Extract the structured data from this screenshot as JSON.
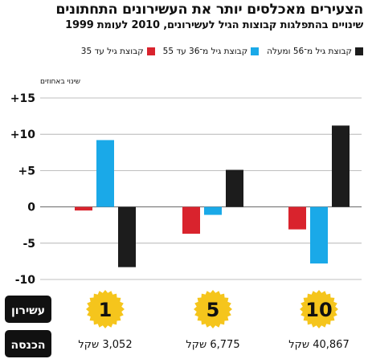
{
  "title": "הצעירים מאכלסים יותר את העשירונים התחתונים",
  "subtitle": "שינויים בהתפלגות קבוצות הגיל לעשירונים, 2010 לעומת 1999",
  "chart_data": {
    "type": "bar",
    "title": "הצעירים מאכלסים יותר את העשירונים התחתונים",
    "subtitle": "שינויים בהתפלגות קבוצות הגיל לעשירונים, 2010 לעומת 1999",
    "ylabel": "שינוי באחוזים",
    "ylim": [
      -10,
      15
    ],
    "yticks": [
      15,
      10,
      5,
      0,
      -5,
      -10
    ],
    "ytick_labels": [
      "+15",
      "+10",
      "+5",
      "0",
      "-5",
      "-10"
    ],
    "grid": true,
    "legend_position": "top",
    "categories": [
      "1",
      "5",
      "10"
    ],
    "category_axis_label": "עשירון",
    "income_label": "הכנסה",
    "incomes": [
      "3,052 שקל",
      "6,775 שקל",
      "40,867 שקל"
    ],
    "series": [
      {
        "name": "קבוצת גיל עד 35",
        "color": "#d9232d",
        "values": [
          -0.5,
          -3.7,
          -3.1
        ]
      },
      {
        "name": "קבוצת גיל מ־36 עד 55",
        "color": "#1aa9e8",
        "values": [
          9.2,
          -1.1,
          -7.8
        ]
      },
      {
        "name": "קבוצת גיל מ־56 ומעלה",
        "color": "#1c1c1c",
        "values": [
          -8.3,
          5.1,
          11.2
        ]
      }
    ],
    "badge_color": "#f5c51c",
    "axis_label_bg": "#111111"
  }
}
